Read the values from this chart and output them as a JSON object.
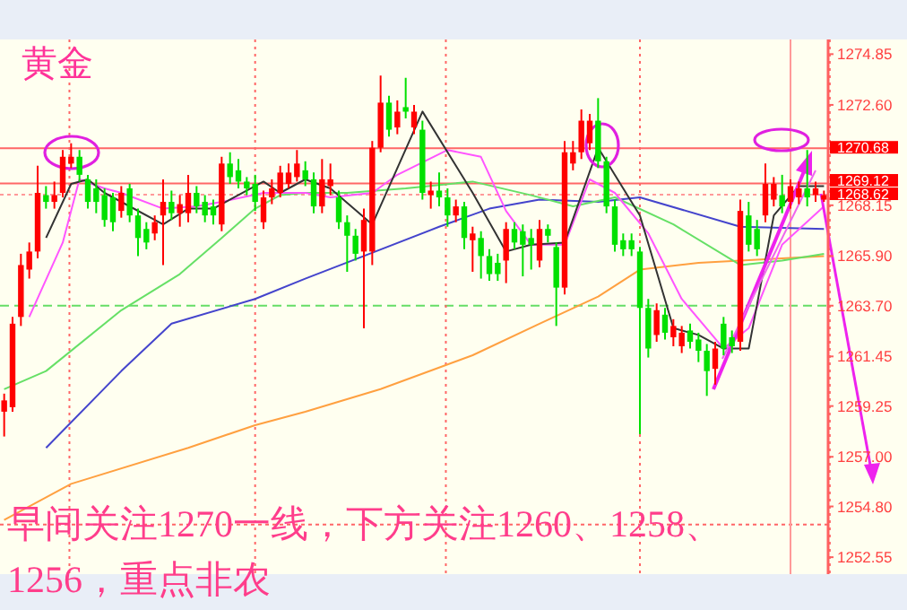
{
  "chart_data": {
    "type": "candlestick",
    "title": "黄金",
    "categories": [
      null,
      null,
      null,
      null,
      null,
      null,
      null,
      null,
      null,
      null,
      null,
      null,
      null,
      null,
      null,
      null,
      null,
      null,
      null,
      null,
      null,
      null,
      null,
      null,
      null,
      null,
      null,
      null,
      null,
      null,
      null,
      null,
      null,
      null,
      null,
      null,
      null,
      null,
      null,
      null,
      null,
      null,
      null,
      null,
      null,
      null,
      null,
      null,
      null,
      null,
      null,
      null,
      null,
      null,
      null,
      null,
      null,
      null,
      null,
      null,
      null,
      null,
      null,
      null,
      null,
      null,
      null,
      null,
      null,
      null,
      null,
      null,
      null,
      null,
      null,
      null,
      null,
      null,
      null,
      null,
      null,
      null,
      null,
      null,
      null,
      null,
      null,
      null,
      null,
      null,
      null,
      null,
      null,
      null,
      null,
      null,
      null,
      null,
      null
    ],
    "ohlc": [
      [
        1259.0,
        1259.8,
        1257.9,
        1259.5
      ],
      [
        1259.2,
        1263.2,
        1259.0,
        1262.9
      ],
      [
        1263.2,
        1266.0,
        1262.8,
        1265.5
      ],
      [
        1265.3,
        1266.5,
        1264.9,
        1266.1
      ],
      [
        1266.1,
        1269.9,
        1265.8,
        1268.7
      ],
      [
        1268.6,
        1269.0,
        1268.0,
        1268.3
      ],
      [
        1268.3,
        1269.2,
        1268.0,
        1268.6
      ],
      [
        1268.7,
        1270.6,
        1268.5,
        1270.3
      ],
      [
        1270.0,
        1270.9,
        1269.8,
        1270.3
      ],
      [
        1270.3,
        1270.6,
        1269.2,
        1269.5
      ],
      [
        1269.3,
        1269.5,
        1268.0,
        1268.3
      ],
      [
        1268.9,
        1269.3,
        1267.8,
        1268.3
      ],
      [
        1268.6,
        1268.9,
        1267.2,
        1267.5
      ],
      [
        1268.5,
        1268.7,
        1267.0,
        1267.4
      ],
      [
        1267.9,
        1269.0,
        1267.6,
        1268.7
      ],
      [
        1268.9,
        1269.1,
        1267.4,
        1267.7
      ],
      [
        1267.7,
        1268.0,
        1265.9,
        1266.7
      ],
      [
        1267.1,
        1267.4,
        1266.2,
        1266.5
      ],
      [
        1266.9,
        1267.7,
        1266.6,
        1267.4
      ],
      [
        1267.7,
        1269.3,
        1265.5,
        1268.3
      ],
      [
        1268.3,
        1268.8,
        1267.5,
        1267.8
      ],
      [
        1267.8,
        1268.6,
        1267.2,
        1268.2
      ],
      [
        1267.8,
        1269.5,
        1267.4,
        1268.7
      ],
      [
        1268.7,
        1269.0,
        1267.8,
        1268.1
      ],
      [
        1268.3,
        1268.6,
        1267.4,
        1267.7
      ],
      [
        1268.1,
        1268.4,
        1267.3,
        1267.7
      ],
      [
        1267.3,
        1270.3,
        1267.0,
        1270.0
      ],
      [
        1270.0,
        1270.5,
        1269.1,
        1269.4
      ],
      [
        1269.7,
        1270.2,
        1268.9,
        1269.2
      ],
      [
        1269.2,
        1269.4,
        1268.6,
        1268.9
      ],
      [
        1269.1,
        1269.5,
        1267.9,
        1268.3
      ],
      [
        1267.4,
        1268.8,
        1267.1,
        1268.5
      ],
      [
        1268.5,
        1269.3,
        1268.2,
        1268.9
      ],
      [
        1268.7,
        1269.9,
        1268.5,
        1269.6
      ],
      [
        1269.1,
        1270.0,
        1268.9,
        1269.6
      ],
      [
        1269.4,
        1270.6,
        1269.2,
        1270.0
      ],
      [
        1269.7,
        1270.1,
        1269.0,
        1269.3
      ],
      [
        1269.3,
        1269.6,
        1267.8,
        1268.1
      ],
      [
        1268.1,
        1270.2,
        1267.8,
        1269.3
      ],
      [
        1269.0,
        1270.0,
        1268.6,
        1269.3
      ],
      [
        1268.5,
        1268.8,
        1267.1,
        1267.4
      ],
      [
        1267.4,
        1267.7,
        1265.2,
        1266.8
      ],
      [
        1266.8,
        1267.1,
        1265.7,
        1266.0
      ],
      [
        1266.1,
        1268.0,
        1262.7,
        1267.5
      ],
      [
        1266.1,
        1271.0,
        1265.5,
        1270.7
      ],
      [
        1270.7,
        1273.9,
        1270.5,
        1272.7
      ],
      [
        1272.7,
        1273.0,
        1271.2,
        1271.5
      ],
      [
        1271.6,
        1272.8,
        1271.3,
        1272.3
      ],
      [
        1272.5,
        1273.8,
        1272.0,
        1272.3
      ],
      [
        1271.6,
        1272.6,
        1271.3,
        1272.3
      ],
      [
        1271.5,
        1271.9,
        1268.4,
        1268.7
      ],
      [
        1268.6,
        1269.2,
        1268.0,
        1268.8
      ],
      [
        1268.8,
        1269.6,
        1268.1,
        1268.5
      ],
      [
        1268.5,
        1268.9,
        1267.2,
        1267.7
      ],
      [
        1267.7,
        1268.4,
        1267.4,
        1268.1
      ],
      [
        1268.1,
        1268.3,
        1266.2,
        1266.7
      ],
      [
        1266.6,
        1267.2,
        1265.2,
        1266.9
      ],
      [
        1266.7,
        1267.0,
        1264.9,
        1265.9
      ],
      [
        1265.9,
        1266.2,
        1264.8,
        1265.1
      ],
      [
        1265.6,
        1266.0,
        1264.8,
        1265.1
      ],
      [
        1265.7,
        1267.4,
        1264.7,
        1267.1
      ],
      [
        1267.1,
        1267.4,
        1266.2,
        1266.5
      ],
      [
        1267.0,
        1267.3,
        1265.0,
        1266.4
      ],
      [
        1266.7,
        1267.1,
        1265.3,
        1266.4
      ],
      [
        1265.7,
        1267.5,
        1265.4,
        1267.1
      ],
      [
        1267.1,
        1267.3,
        1266.5,
        1266.8
      ],
      [
        1266.3,
        1266.5,
        1262.8,
        1264.5
      ],
      [
        1264.5,
        1271.0,
        1264.2,
        1270.5
      ],
      [
        1270.0,
        1271.0,
        1269.7,
        1270.5
      ],
      [
        1270.5,
        1272.4,
        1270.2,
        1271.9
      ],
      [
        1270.9,
        1272.2,
        1270.6,
        1271.9
      ],
      [
        1271.9,
        1272.9,
        1269.8,
        1270.1
      ],
      [
        1270.1,
        1270.3,
        1267.8,
        1268.1
      ],
      [
        1268.1,
        1268.4,
        1266.1,
        1266.4
      ],
      [
        1266.6,
        1266.9,
        1265.9,
        1266.2
      ],
      [
        1266.6,
        1266.9,
        1265.9,
        1266.2
      ],
      [
        1266.1,
        1266.3,
        1258.0,
        1263.6
      ],
      [
        1263.6,
        1264.0,
        1261.4,
        1261.8
      ],
      [
        1262.4,
        1263.8,
        1262.1,
        1263.5
      ],
      [
        1263.3,
        1263.6,
        1262.2,
        1262.5
      ],
      [
        1262.3,
        1263.1,
        1261.9,
        1262.8
      ],
      [
        1261.9,
        1262.8,
        1261.6,
        1262.5
      ],
      [
        1262.6,
        1262.9,
        1261.8,
        1262.1
      ],
      [
        1262.2,
        1262.5,
        1261.2,
        1261.7
      ],
      [
        1261.7,
        1262.0,
        1259.7,
        1260.8
      ],
      [
        1260.9,
        1262.1,
        1260.2,
        1261.8
      ],
      [
        1262.9,
        1263.2,
        1261.5,
        1261.8
      ],
      [
        1262.3,
        1262.6,
        1261.6,
        1261.9
      ],
      [
        1262.1,
        1268.4,
        1261.7,
        1267.9
      ],
      [
        1267.7,
        1268.3,
        1266.1,
        1266.4
      ],
      [
        1267.1,
        1267.5,
        1265.9,
        1266.2
      ],
      [
        1267.7,
        1270.0,
        1267.4,
        1269.1
      ],
      [
        1268.4,
        1269.4,
        1268.1,
        1269.1
      ],
      [
        1268.6,
        1269.5,
        1267.8,
        1268.1
      ],
      [
        1268.3,
        1269.3,
        1268.0,
        1269.0
      ],
      [
        1268.5,
        1269.2,
        1268.2,
        1268.9
      ],
      [
        1268.9,
        1270.6,
        1268.1,
        1268.5
      ],
      [
        1268.6,
        1269.2,
        1268.3,
        1268.9
      ],
      [
        1268.4,
        1268.8,
        1268.3,
        1268.6
      ]
    ],
    "series": [
      {
        "type": "line",
        "color": "#ffa040",
        "values": [
          1254.2,
          null,
          null,
          null,
          null,
          null,
          null,
          null,
          1255.8,
          null,
          null,
          null,
          null,
          null,
          null,
          null,
          null,
          null,
          null,
          null,
          null,
          null,
          1257.4,
          null,
          null,
          null,
          null,
          null,
          null,
          null,
          1258.4,
          null,
          null,
          null,
          null,
          null,
          1259.0,
          null,
          null,
          null,
          null,
          null,
          null,
          null,
          null,
          1260.0,
          null,
          null,
          null,
          null,
          null,
          null,
          null,
          null,
          null,
          null,
          1261.5,
          null,
          null,
          null,
          null,
          null,
          null,
          null,
          1262.9,
          null,
          null,
          null,
          null,
          null,
          null,
          1264.1,
          null,
          null,
          null,
          null,
          1265.3,
          null,
          null,
          null,
          null,
          null,
          null,
          1265.6,
          null,
          null,
          null,
          null,
          null,
          null,
          null,
          null,
          null,
          null,
          null,
          null,
          null,
          null,
          1265.9
        ]
      },
      {
        "type": "line",
        "color": "#4444cc",
        "values": [
          null,
          null,
          null,
          null,
          null,
          1257.4,
          null,
          null,
          null,
          null,
          null,
          null,
          null,
          null,
          1260.8,
          null,
          null,
          null,
          null,
          null,
          1262.9,
          null,
          null,
          null,
          null,
          null,
          null,
          null,
          null,
          null,
          1264.0,
          null,
          null,
          null,
          null,
          null,
          1264.9,
          null,
          null,
          null,
          null,
          null,
          null,
          1265.9,
          null,
          null,
          null,
          null,
          null,
          null,
          null,
          null,
          1267.2,
          null,
          null,
          null,
          null,
          null,
          1268.0,
          null,
          null,
          null,
          null,
          null,
          1268.4,
          null,
          null,
          null,
          null,
          null,
          null,
          1268.3,
          null,
          null,
          null,
          null,
          1268.5,
          null,
          null,
          null,
          null,
          null,
          null,
          null,
          null,
          null,
          null,
          null,
          1267.2,
          null,
          null,
          null,
          null,
          null,
          null,
          null,
          null,
          null,
          1267.1
        ]
      },
      {
        "type": "line",
        "color": "#66e066",
        "values": [
          1260.0,
          null,
          null,
          null,
          null,
          1260.8,
          null,
          null,
          null,
          null,
          null,
          null,
          null,
          null,
          1263.5,
          null,
          null,
          null,
          null,
          null,
          null,
          1265.1,
          null,
          null,
          null,
          null,
          1266.7,
          null,
          null,
          null,
          1268.0,
          null,
          null,
          1268.6,
          null,
          null,
          1268.7,
          null,
          null,
          null,
          null,
          1268.7,
          null,
          null,
          null,
          null,
          null,
          null,
          1268.9,
          null,
          null,
          null,
          null,
          null,
          null,
          null,
          1269.2,
          null,
          null,
          null,
          null,
          null,
          null,
          1268.6,
          null,
          null,
          null,
          null,
          1268.1,
          null,
          null,
          null,
          null,
          1268.5,
          null,
          null,
          null,
          null,
          null,
          null,
          1267.3,
          null,
          null,
          null,
          null,
          null,
          null,
          null,
          1265.5,
          null,
          null,
          null,
          null,
          1265.7,
          null,
          null,
          null,
          null,
          1266.0
        ]
      },
      {
        "type": "line",
        "color": "#ff55ff",
        "values": [
          null,
          null,
          null,
          1263.2,
          null,
          null,
          null,
          1266.5,
          null,
          1269.3,
          null,
          null,
          1268.9,
          null,
          1268.7,
          null,
          null,
          null,
          null,
          1268.0,
          null,
          null,
          null,
          1268.1,
          null,
          null,
          1268.3,
          null,
          null,
          null,
          null,
          1268.7,
          null,
          null,
          null,
          null,
          1268.7,
          null,
          null,
          1268.5,
          null,
          null,
          null,
          null,
          1268.7,
          null,
          null,
          1269.5,
          null,
          null,
          null,
          null,
          null,
          1270.6,
          null,
          null,
          null,
          1270.3,
          null,
          null,
          1267.9,
          null,
          null,
          1266.4,
          null,
          null,
          null,
          1266.4,
          null,
          null,
          1269.3,
          null,
          null,
          1268.7,
          null,
          null,
          null,
          1266.9,
          null,
          null,
          null,
          1264.0,
          null,
          null,
          null,
          null,
          1261.8,
          null,
          null,
          1262.7,
          null,
          null,
          null,
          1266.4,
          null,
          null,
          null,
          null,
          1268.1
        ]
      },
      {
        "type": "line",
        "color": "#333333",
        "values": [
          null,
          null,
          null,
          null,
          null,
          1266.7,
          null,
          null,
          1269.1,
          null,
          1269.3,
          null,
          1268.7,
          null,
          null,
          1268.1,
          null,
          null,
          null,
          1267.3,
          null,
          null,
          1268.0,
          null,
          null,
          1268.0,
          null,
          null,
          null,
          null,
          null,
          1269.2,
          null,
          1268.7,
          null,
          null,
          1269.3,
          null,
          null,
          1268.9,
          null,
          null,
          null,
          null,
          1267.3,
          null,
          null,
          null,
          null,
          null,
          1272.3,
          null,
          null,
          null,
          null,
          null,
          1268.7,
          null,
          null,
          null,
          1266.1,
          null,
          null,
          1266.4,
          null,
          null,
          null,
          1266.5,
          null,
          null,
          null,
          1270.7,
          null,
          null,
          null,
          null,
          1267.7,
          null,
          null,
          null,
          1262.7,
          null,
          null,
          1262.4,
          null,
          null,
          1261.8,
          null,
          null,
          1261.8,
          null,
          null,
          1267.7,
          null,
          null,
          1269.0,
          null,
          null,
          1269.0
        ]
      }
    ],
    "ylim": [
      1251.8,
      1275.5
    ],
    "yticks": [
      1252.55,
      {
        "value": 1254.8,
        "label": "1254.80"
      },
      {
        "value": 1257,
        "label": "1257.00"
      },
      1259.25,
      1261.45,
      {
        "value": 1263.7,
        "label": "1263.70"
      },
      {
        "value": 1265.9,
        "label": "1265.90"
      },
      1268.15,
      {
        "value": 1272.6,
        "label": "1272.60"
      },
      1274.85
    ],
    "tick_labels": "y",
    "ref_lines": [
      {
        "axis": "y",
        "value": 1270.68,
        "label": "1270.68",
        "color": "#ff6666",
        "line_style": "solid"
      },
      {
        "axis": "y",
        "value": 1269.12,
        "label": "1269.12",
        "color": "#ff6666",
        "line_style": "solid"
      },
      {
        "axis": "y",
        "value": 1268.62,
        "label": "1268.62",
        "color": "#ff9999",
        "line_style": "dotted"
      },
      {
        "axis": "y",
        "value": 1263.7,
        "color": "#66dd66",
        "line_style": "dashed"
      },
      {
        "axis": "y",
        "value": 1254.0,
        "color": "#ff6666",
        "line_style": "dotted"
      }
    ],
    "annotations": [
      "早间关注1270一线，下方关注1260、1258、1256，重点非农"
    ]
  }
}
